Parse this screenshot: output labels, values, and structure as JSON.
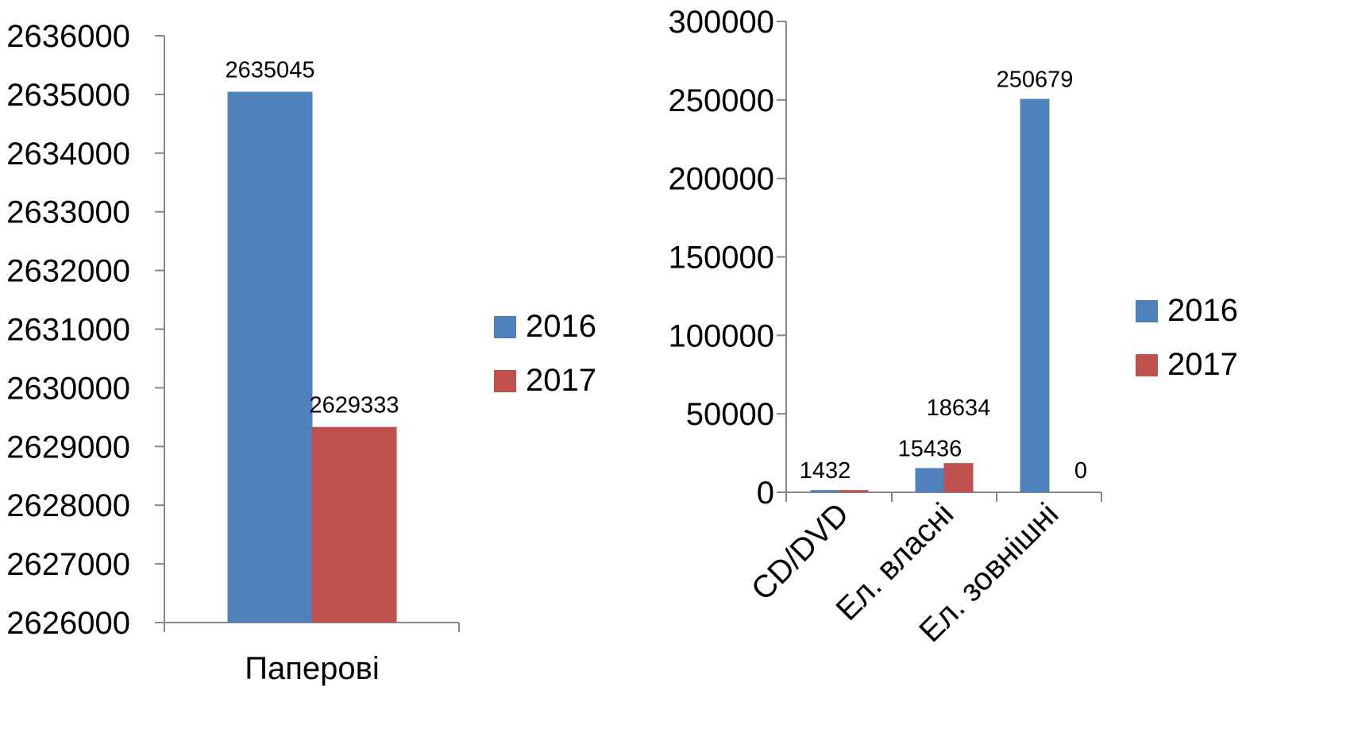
{
  "chart_data": [
    {
      "type": "bar",
      "categories": [
        "Паперові"
      ],
      "series": [
        {
          "name": "2016",
          "color": "#4F81BD",
          "values": [
            2635045
          ],
          "labels": [
            "2635045"
          ]
        },
        {
          "name": "2017",
          "color": "#C0504D",
          "values": [
            2629333
          ],
          "labels": [
            "2629333"
          ]
        }
      ],
      "ylim": [
        2626000,
        2636000
      ],
      "yticks": [
        2626000,
        2627000,
        2628000,
        2629000,
        2630000,
        2631000,
        2632000,
        2633000,
        2634000,
        2635000,
        2636000
      ],
      "ytick_labels": [
        "2626000",
        "2627000",
        "2628000",
        "2629000",
        "2630000",
        "2631000",
        "2632000",
        "2633000",
        "2634000",
        "2635000",
        "2636000"
      ],
      "legend": "right",
      "grid": false
    },
    {
      "type": "bar",
      "categories": [
        "CD/DVD",
        "Ел. власні",
        "Ел. зовнішні"
      ],
      "series": [
        {
          "name": "2016",
          "color": "#4F81BD",
          "values": [
            1432,
            15436,
            250679
          ],
          "labels": [
            "1432",
            "15436",
            "250679"
          ]
        },
        {
          "name": "2017",
          "color": "#C0504D",
          "values": [
            1432,
            18634,
            0
          ],
          "labels": [
            "",
            "18634",
            "0"
          ]
        }
      ],
      "ylim": [
        0,
        300000
      ],
      "yticks": [
        0,
        50000,
        100000,
        150000,
        200000,
        250000,
        300000
      ],
      "ytick_labels": [
        "0",
        "50000",
        "100000",
        "150000",
        "200000",
        "250000",
        "300000"
      ],
      "legend": "right",
      "grid": false
    }
  ]
}
